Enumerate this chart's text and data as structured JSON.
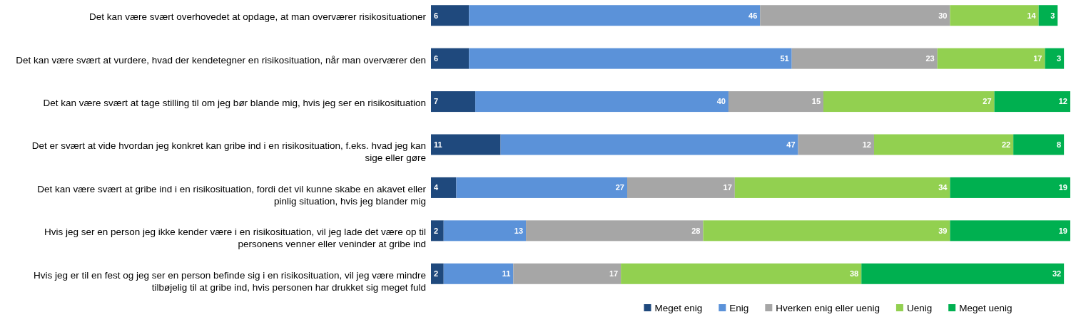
{
  "chart_data": {
    "type": "bar",
    "orientation": "horizontal",
    "stacked": true,
    "data_labels": true,
    "legend": "bottom",
    "tick_labels": "y",
    "xlim": [
      0,
      101
    ],
    "categories": [
      "Det kan være svært overhovedet at opdage, at man overværer risikosituationer",
      "Det kan være svært at vurdere, hvad der kendetegner en risikosituation, når man overværer den",
      "Det kan være svært at tage stilling til om jeg bør blande mig, hvis jeg ser en risikosituation",
      "Det er svært at vide hvordan jeg konkret kan gribe ind i en risikosituation, f.eks. hvad jeg kan sige eller gøre",
      "Det kan være svært at gribe ind i en risikosituation, fordi det vil kunne skabe en akavet eller pinlig situation, hvis jeg blander mig",
      "Hvis jeg ser en person jeg ikke kender være i en risikosituation, vil jeg lade det være op til personens venner eller veninder at gribe ind",
      "Hvis jeg er til en fest og jeg ser en person befinde sig i en risikosituation, vil jeg være mindre tilbøjelig til at gribe ind, hvis personen har drukket sig meget fuld"
    ],
    "series": [
      {
        "name": "Meget enig",
        "color": "#1f497d",
        "values": [
          6,
          6,
          7,
          11,
          4,
          2,
          2
        ]
      },
      {
        "name": "Enig",
        "color": "#5b92d9",
        "values": [
          46,
          51,
          40,
          47,
          27,
          13,
          11
        ]
      },
      {
        "name": "Hverken enig eller uenig",
        "color": "#a6a6a6",
        "values": [
          30,
          23,
          15,
          12,
          17,
          28,
          17
        ]
      },
      {
        "name": "Uenig",
        "color": "#92d050",
        "values": [
          14,
          17,
          27,
          22,
          34,
          39,
          38
        ]
      },
      {
        "name": "Meget uenig",
        "color": "#00b050",
        "values": [
          3,
          3,
          12,
          8,
          19,
          19,
          32
        ]
      }
    ]
  }
}
